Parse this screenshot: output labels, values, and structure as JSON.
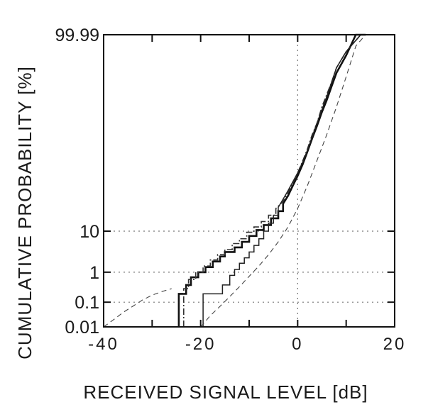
{
  "chart_data": {
    "type": "line",
    "title": "",
    "xlabel": "RECEIVED SIGNAL LEVEL [dB]",
    "ylabel": "CUMULATIVE PROBABILITY [%]",
    "xlim": [
      -40,
      20
    ],
    "ylim": [
      0.01,
      99.99
    ],
    "y_scale": "normal-probability",
    "x_ticks": [
      -40,
      -30,
      -20,
      -10,
      0,
      10,
      20
    ],
    "x_tick_labels": [
      "-40",
      "",
      "-20",
      "",
      "0",
      "",
      "20"
    ],
    "y_ticks": [
      0.01,
      0.1,
      1,
      10,
      99.99
    ],
    "y_tick_labels": [
      "0.01",
      "0.1",
      "1",
      "10",
      "99.99"
    ],
    "grid": true,
    "legend": false,
    "series": [
      {
        "style": "solid-thick",
        "color": "#111111",
        "points": [
          [
            -24.5,
            0.01
          ],
          [
            -24.5,
            0.2
          ],
          [
            -23,
            0.2
          ],
          [
            -23,
            0.4
          ],
          [
            -22,
            0.4
          ],
          [
            -22,
            0.7
          ],
          [
            -20.5,
            0.7
          ],
          [
            -20.5,
            1.0
          ],
          [
            -19,
            1.0
          ],
          [
            -19,
            1.4
          ],
          [
            -17.5,
            1.4
          ],
          [
            -17.5,
            2.0
          ],
          [
            -16,
            2.0
          ],
          [
            -16,
            2.7
          ],
          [
            -15,
            2.7
          ],
          [
            -15,
            3.5
          ],
          [
            -13,
            3.5
          ],
          [
            -13,
            4.5
          ],
          [
            -11.5,
            4.5
          ],
          [
            -11.5,
            6.0
          ],
          [
            -10,
            6.0
          ],
          [
            -10,
            8.0
          ],
          [
            -8.5,
            8.0
          ],
          [
            -8.5,
            10.5
          ],
          [
            -7,
            10.5
          ],
          [
            -7,
            13
          ],
          [
            -5.5,
            13
          ],
          [
            -5.5,
            17
          ],
          [
            -4,
            17
          ],
          [
            -4,
            22
          ],
          [
            -3,
            22
          ],
          [
            -3,
            28
          ],
          [
            -2,
            35
          ],
          [
            -1,
            45
          ],
          [
            0,
            55
          ],
          [
            1,
            66
          ],
          [
            2,
            77
          ],
          [
            3,
            86
          ],
          [
            4,
            92
          ],
          [
            5,
            96
          ],
          [
            6,
            98
          ],
          [
            7,
            99.2
          ],
          [
            8,
            99.7
          ],
          [
            10,
            99.93
          ],
          [
            12,
            99.99
          ],
          [
            14,
            99.99
          ]
        ]
      },
      {
        "style": "dash-dot",
        "color": "#333333",
        "points": [
          [
            -23.5,
            0.01
          ],
          [
            -23.5,
            0.3
          ],
          [
            -22.5,
            0.3
          ],
          [
            -22.5,
            0.6
          ],
          [
            -21,
            0.6
          ],
          [
            -21,
            1.0
          ],
          [
            -19.5,
            1.0
          ],
          [
            -19.5,
            1.5
          ],
          [
            -18,
            1.5
          ],
          [
            -18,
            2.2
          ],
          [
            -16.5,
            2.2
          ],
          [
            -16.5,
            3.0
          ],
          [
            -15,
            3.0
          ],
          [
            -15,
            4.0
          ],
          [
            -13.5,
            4.0
          ],
          [
            -13.5,
            5.5
          ],
          [
            -12,
            5.5
          ],
          [
            -12,
            7.0
          ],
          [
            -10.5,
            7.0
          ],
          [
            -10.5,
            9.5
          ],
          [
            -9,
            9.5
          ],
          [
            -9,
            12
          ],
          [
            -7.5,
            12
          ],
          [
            -7.5,
            15
          ],
          [
            -6,
            15
          ],
          [
            -6,
            19
          ],
          [
            -4.5,
            19
          ],
          [
            -4.5,
            24
          ],
          [
            -3,
            30
          ],
          [
            -2,
            38
          ],
          [
            -1,
            48
          ],
          [
            0,
            58
          ],
          [
            1,
            69
          ],
          [
            2,
            79
          ],
          [
            3,
            88
          ],
          [
            4,
            93
          ],
          [
            5,
            97
          ],
          [
            6,
            98.6
          ],
          [
            7,
            99.4
          ],
          [
            8,
            99.8
          ],
          [
            10,
            99.95
          ],
          [
            13,
            99.99
          ]
        ]
      },
      {
        "style": "solid-thin",
        "color": "#222222",
        "points": [
          [
            -19.5,
            0.01
          ],
          [
            -19.5,
            0.2
          ],
          [
            -15.5,
            0.2
          ],
          [
            -15.5,
            0.4
          ],
          [
            -14,
            0.4
          ],
          [
            -14,
            0.8
          ],
          [
            -13,
            0.8
          ],
          [
            -13,
            1.2
          ],
          [
            -12,
            1.2
          ],
          [
            -12,
            1.8
          ],
          [
            -11,
            1.8
          ],
          [
            -11,
            2.5
          ],
          [
            -10,
            2.5
          ],
          [
            -10,
            3.5
          ],
          [
            -9,
            3.5
          ],
          [
            -9,
            5.0
          ],
          [
            -8,
            5.0
          ],
          [
            -8,
            7.0
          ],
          [
            -7,
            7.0
          ],
          [
            -7,
            10
          ],
          [
            -6,
            10
          ],
          [
            -6,
            14
          ],
          [
            -5,
            14
          ],
          [
            -5,
            19
          ],
          [
            -4,
            19
          ],
          [
            -4,
            25
          ],
          [
            -3,
            32
          ],
          [
            -2,
            40
          ],
          [
            -1,
            49
          ],
          [
            0,
            58
          ],
          [
            1,
            68
          ],
          [
            2,
            78
          ],
          [
            3,
            87
          ],
          [
            4,
            93
          ],
          [
            5,
            96.5
          ],
          [
            6,
            98.4
          ],
          [
            7,
            99.4
          ],
          [
            8,
            99.8
          ],
          [
            10,
            99.95
          ],
          [
            13,
            99.99
          ]
        ]
      },
      {
        "style": "dashed-thin",
        "color": "#444444",
        "points": [
          [
            -40,
            0.01
          ],
          [
            -38,
            0.02
          ],
          [
            -36,
            0.04
          ],
          [
            -34,
            0.07
          ],
          [
            -32,
            0.12
          ],
          [
            -30,
            0.18
          ],
          [
            -28,
            0.24
          ],
          [
            -26,
            0.3
          ]
        ]
      },
      {
        "style": "dashed-thin",
        "color": "#444444",
        "points": [
          [
            -20,
            0.01
          ],
          [
            -18,
            0.03
          ],
          [
            -16,
            0.07
          ],
          [
            -14,
            0.16
          ],
          [
            -12,
            0.35
          ],
          [
            -10,
            0.75
          ],
          [
            -8,
            1.5
          ],
          [
            -6,
            3.0
          ],
          [
            -4,
            6.0
          ],
          [
            -2,
            12
          ],
          [
            0,
            24
          ],
          [
            2,
            45
          ],
          [
            4,
            70
          ],
          [
            6,
            88
          ],
          [
            8,
            97
          ],
          [
            10,
            99.6
          ],
          [
            12,
            99.97
          ],
          [
            14,
            99.99
          ]
        ]
      }
    ]
  }
}
